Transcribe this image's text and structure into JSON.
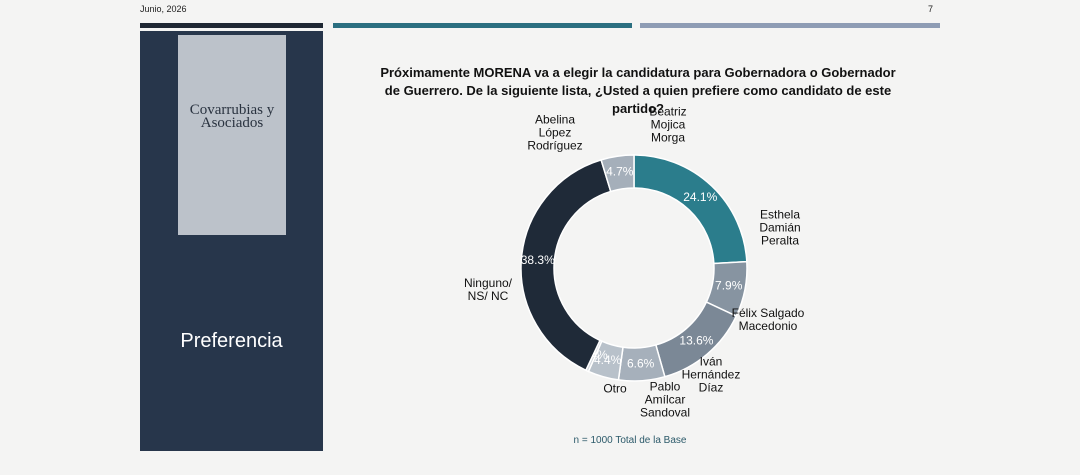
{
  "header": {
    "date": "Junio, 2026",
    "page": "7"
  },
  "sidebar": {
    "logo": "Covarrubias y Asociados",
    "section": "Preferencia"
  },
  "chart_data": {
    "type": "donut",
    "title": "Próximamente MORENA va a elegir la candidatura para Gobernadora o Gobernador de Guerrero.  De la siguiente lista, ¿Usted a quien prefiere como candidato de este partido?",
    "categories": [
      "Beatriz Mojica Morga",
      "Esthela Damián Peralta",
      "Félix Salgado Macedonio",
      "Iván Hernández Díaz",
      "Pablo Amílcar Sandoval",
      "Otro",
      "Ninguno/ NS/ NC",
      "Abelina López Rodríguez"
    ],
    "values": [
      24.1,
      7.9,
      13.6,
      6.6,
      4.4,
      0.4,
      38.3,
      4.7
    ],
    "value_labels": [
      "24.1%",
      "7.9%",
      "13.6%",
      "6.6%",
      "4.4%",
      "0.4%",
      "38.3%",
      "4.7%"
    ],
    "colors": [
      "#2b7d8c",
      "#8794a1",
      "#7b8896",
      "#a6b0bb",
      "#b8c1ca",
      "#d2d8de",
      "#1f2a38",
      "#a5afba"
    ],
    "footnote": "n = 1000 Total de la Base"
  }
}
